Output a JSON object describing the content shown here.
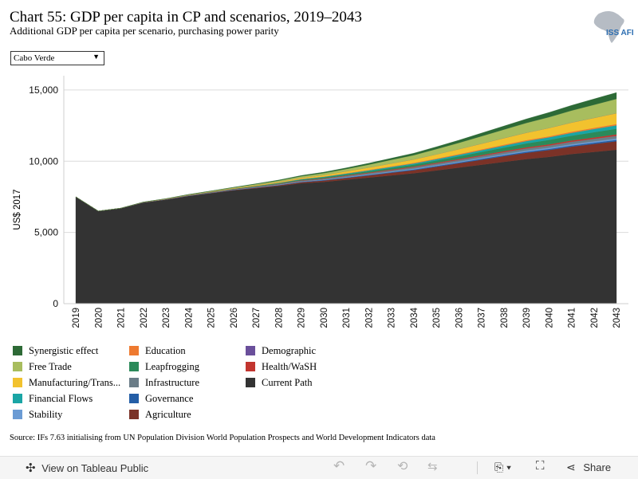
{
  "header": {
    "title": "Chart 55: GDP per capita in CP and scenarios, 2019–2043",
    "subtitle": "Additional GDP per capita per scenario, purchasing power parity",
    "logo_text": "ISS AFI"
  },
  "filter": {
    "selected": "Cabo Verde",
    "icon": "chevron-down-icon"
  },
  "chart_data": {
    "type": "area",
    "stacked": true,
    "ylabel": "US$ 2017",
    "ylim": [
      0,
      16000
    ],
    "yticks": [
      0,
      5000,
      10000,
      15000
    ],
    "ytick_labels": [
      "0",
      "5,000",
      "10,000",
      "15,000"
    ],
    "grid": true,
    "legend_position": "bottom",
    "x": [
      "2019",
      "2020",
      "2021",
      "2022",
      "2023",
      "2024",
      "2025",
      "2026",
      "2027",
      "2028",
      "2029",
      "2030",
      "2031",
      "2032",
      "2033",
      "2034",
      "2035",
      "2036",
      "2037",
      "2038",
      "2039",
      "2040",
      "2041",
      "2042",
      "2043"
    ],
    "series": [
      {
        "name": "Current Path",
        "color": "#333333",
        "values": [
          7500,
          6500,
          6700,
          7100,
          7300,
          7550,
          7750,
          7950,
          8100,
          8250,
          8450,
          8550,
          8700,
          8850,
          9000,
          9150,
          9350,
          9550,
          9750,
          9950,
          10150,
          10300,
          10500,
          10650,
          10800
        ]
      },
      {
        "name": "Agriculture",
        "color": "#7b3227",
        "values": [
          0,
          0,
          0,
          5,
          10,
          15,
          20,
          30,
          40,
          55,
          75,
          95,
          120,
          150,
          185,
          220,
          260,
          300,
          350,
          400,
          440,
          480,
          520,
          560,
          600
        ]
      },
      {
        "name": "Governance",
        "color": "#245ea6",
        "values": [
          0,
          0,
          0,
          2,
          4,
          6,
          8,
          10,
          15,
          20,
          25,
          30,
          35,
          40,
          45,
          50,
          55,
          60,
          65,
          70,
          75,
          80,
          85,
          90,
          95
        ]
      },
      {
        "name": "Stability",
        "color": "#6b9bd4",
        "values": [
          0,
          0,
          0,
          2,
          4,
          6,
          8,
          10,
          15,
          20,
          25,
          30,
          35,
          40,
          45,
          50,
          55,
          60,
          65,
          70,
          75,
          80,
          85,
          90,
          95
        ]
      },
      {
        "name": "Infrastructure",
        "color": "#6b7d88",
        "values": [
          0,
          0,
          0,
          3,
          6,
          10,
          15,
          20,
          30,
          40,
          50,
          60,
          70,
          80,
          90,
          100,
          110,
          120,
          130,
          140,
          150,
          160,
          170,
          180,
          190
        ]
      },
      {
        "name": "Health/WaSH",
        "color": "#c2352f",
        "values": [
          0,
          0,
          0,
          2,
          4,
          6,
          10,
          15,
          20,
          25,
          30,
          35,
          40,
          45,
          50,
          55,
          60,
          65,
          70,
          75,
          80,
          85,
          90,
          95,
          100
        ]
      },
      {
        "name": "Leapfrogging",
        "color": "#2b8a5a",
        "values": [
          0,
          0,
          0,
          5,
          10,
          15,
          20,
          25,
          35,
          45,
          55,
          70,
          85,
          100,
          120,
          140,
          160,
          190,
          220,
          250,
          280,
          310,
          340,
          370,
          400
        ]
      },
      {
        "name": "Financial Flows",
        "color": "#1aa5a5",
        "values": [
          0,
          0,
          0,
          2,
          4,
          6,
          8,
          10,
          15,
          20,
          30,
          35,
          45,
          55,
          65,
          75,
          90,
          105,
          120,
          140,
          160,
          180,
          200,
          220,
          240
        ]
      },
      {
        "name": "Education",
        "color": "#ee7a30",
        "values": [
          0,
          0,
          0,
          2,
          4,
          6,
          8,
          10,
          12,
          15,
          20,
          25,
          30,
          35,
          40,
          45,
          50,
          55,
          60,
          65,
          70,
          75,
          80,
          85,
          90
        ]
      },
      {
        "name": "Manufacturing/Transfers",
        "color": "#f2c22e",
        "values": [
          0,
          0,
          0,
          5,
          10,
          15,
          20,
          30,
          45,
          60,
          80,
          100,
          130,
          160,
          200,
          240,
          290,
          340,
          400,
          460,
          520,
          580,
          640,
          700,
          760
        ]
      },
      {
        "name": "Demographic",
        "color": "#6a4f9b",
        "values": [
          0,
          0,
          0,
          0,
          0,
          0,
          0,
          0,
          0,
          0,
          0,
          0,
          0,
          0,
          0,
          0,
          0,
          0,
          0,
          0,
          0,
          0,
          0,
          0,
          0
        ]
      },
      {
        "name": "Free Trade",
        "color": "#a8bd5e",
        "values": [
          0,
          0,
          0,
          5,
          10,
          20,
          30,
          40,
          60,
          80,
          100,
          130,
          160,
          200,
          250,
          300,
          370,
          440,
          520,
          600,
          680,
          760,
          840,
          920,
          1000
        ]
      },
      {
        "name": "Synergistic effect",
        "color": "#2d6a36",
        "values": [
          0,
          0,
          0,
          5,
          10,
          15,
          20,
          25,
          35,
          45,
          55,
          70,
          85,
          100,
          120,
          140,
          160,
          190,
          220,
          250,
          290,
          330,
          370,
          410,
          450
        ]
      }
    ]
  },
  "legend": [
    {
      "label": "Synergistic effect",
      "color": "#2d6a36"
    },
    {
      "label": "Free Trade",
      "color": "#a8bd5e"
    },
    {
      "label": "Manufacturing/Trans...",
      "color": "#f2c22e"
    },
    {
      "label": "Financial Flows",
      "color": "#1aa5a5"
    },
    {
      "label": "Stability",
      "color": "#6b9bd4"
    },
    {
      "label": "Education",
      "color": "#ee7a30"
    },
    {
      "label": "Leapfrogging",
      "color": "#2b8a5a"
    },
    {
      "label": "Infrastructure",
      "color": "#6b7d88"
    },
    {
      "label": "Governance",
      "color": "#245ea6"
    },
    {
      "label": "Agriculture",
      "color": "#7b3227"
    },
    {
      "label": "Demographic",
      "color": "#6a4f9b"
    },
    {
      "label": "Health/WaSH",
      "color": "#c2352f"
    },
    {
      "label": "Current Path",
      "color": "#333333"
    }
  ],
  "source": "Source: IFs 7.63 initialising from UN Population Division World Population Prospects and World Development Indicators data",
  "toolbar": {
    "view_label": "View on Tableau Public",
    "share_label": "Share",
    "icons": [
      "tableau-icon",
      "undo-icon",
      "redo-icon",
      "revert-icon",
      "refresh-icon",
      "download-icon",
      "fullscreen-icon",
      "share-icon"
    ]
  }
}
